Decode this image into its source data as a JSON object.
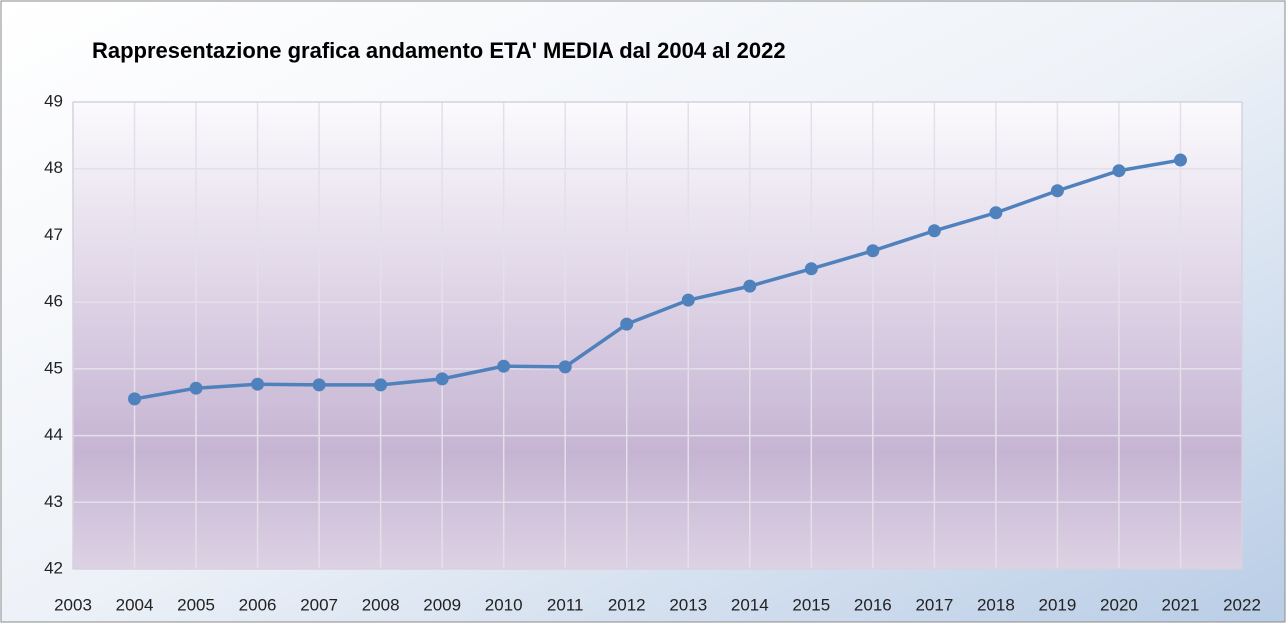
{
  "chart_data": {
    "type": "line",
    "title": "Rappresentazione grafica andamento ETA' MEDIA dal 2004 al 2022",
    "x": [
      2004,
      2005,
      2006,
      2007,
      2008,
      2009,
      2010,
      2011,
      2012,
      2013,
      2014,
      2015,
      2016,
      2017,
      2018,
      2019,
      2020,
      2021
    ],
    "series": [
      {
        "color": "#4f81bd",
        "values": [
          44.55,
          44.71,
          44.77,
          44.76,
          44.76,
          44.85,
          45.04,
          45.03,
          45.67,
          46.03,
          46.24,
          46.5,
          46.77,
          47.07,
          47.34,
          47.67,
          47.97,
          48.13
        ]
      }
    ],
    "xlim": [
      2003,
      2022
    ],
    "xticks": [
      2003,
      2004,
      2005,
      2006,
      2007,
      2008,
      2009,
      2010,
      2011,
      2012,
      2013,
      2014,
      2015,
      2016,
      2017,
      2018,
      2019,
      2020,
      2021,
      2022
    ],
    "ylim": [
      42,
      49
    ],
    "yticks": [
      42,
      43,
      44,
      45,
      46,
      47,
      48,
      49
    ],
    "grid": true
  }
}
